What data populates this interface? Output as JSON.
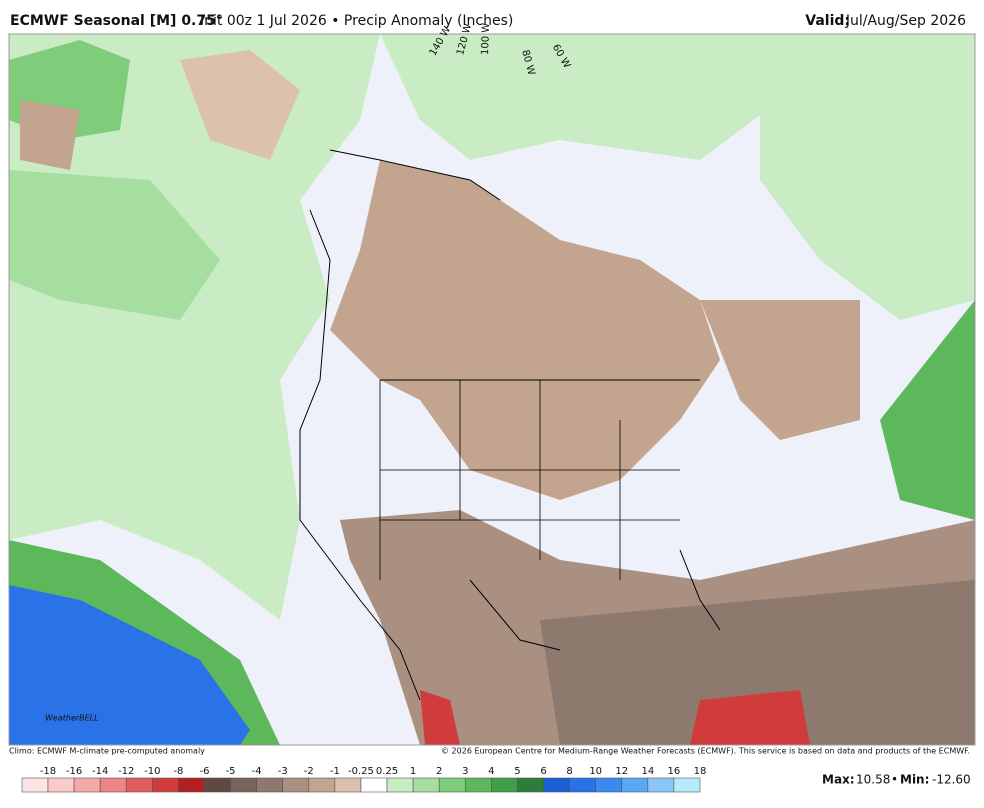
{
  "header": {
    "model": "ECMWF Seasonal [M] 0.75°",
    "title": "Init 00z 1 Jul 2026 • Precip Anomaly (Inches)",
    "valid_label": "Valid:",
    "valid": "Jul/Aug/Sep 2026"
  },
  "map": {
    "longitude_labels": [
      "140 W",
      "120 W",
      "100 W",
      "80 W",
      "60 W"
    ],
    "logo": "WeatherBELL"
  },
  "footer": {
    "climo": "Climo: ECMWF M-climate pre-computed anomaly",
    "copyright": "© 2026 European Centre for Medium-Range Weather Forecasts (ECMWF). This service is based on data and products of the ECMWF."
  },
  "colorbar": {
    "labels": [
      -18,
      -16,
      -14,
      -12,
      -10,
      -8,
      -6,
      -5,
      -4,
      -3,
      -2,
      -1,
      -0.25,
      0.25,
      1,
      2,
      3,
      4,
      5,
      6,
      8,
      10,
      12,
      14,
      16,
      18
    ],
    "colors": [
      "#fde4e4",
      "#fbcaca",
      "#f4a8a8",
      "#ec8686",
      "#e05e5e",
      "#d03c3c",
      "#b02222",
      "#5e4a40",
      "#76635a",
      "#8d796d",
      "#a99080",
      "#c2a48f",
      "#dcc2ae",
      "#ffffff",
      "#c9ecc4",
      "#a6dea0",
      "#7fcc7a",
      "#5cb85b",
      "#3f9f48",
      "#2f7d3a",
      "#1a5fd6",
      "#2a72e8",
      "#3a8af0",
      "#5aa8f5",
      "#8ac7f8",
      "#b4ecfb"
    ]
  },
  "stats": {
    "max_label": "Max:",
    "max": 10.58,
    "separator": "•",
    "min_label": "Min:",
    "min": {
      "value": -12.6,
      "label": "-12.60"
    }
  }
}
